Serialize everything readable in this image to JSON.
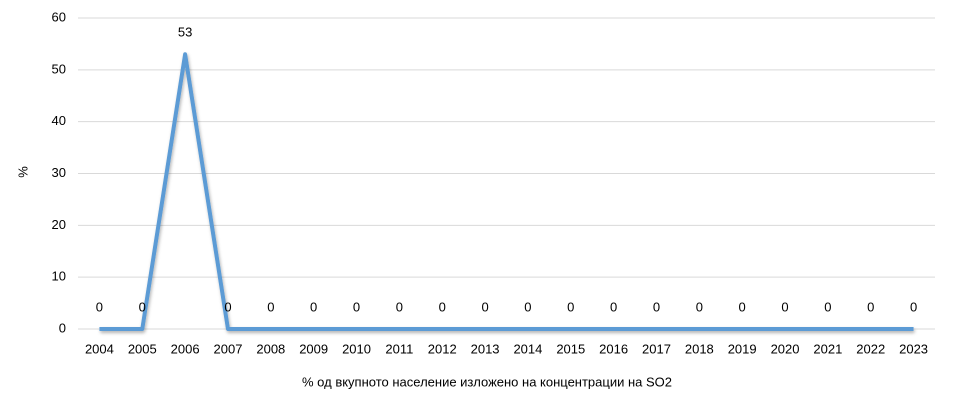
{
  "chart_data": {
    "type": "line",
    "y_label": "%",
    "categories": [
      "2004",
      "2005",
      "2006",
      "2007",
      "2008",
      "2009",
      "2010",
      "2011",
      "2012",
      "2013",
      "2014",
      "2015",
      "2016",
      "2017",
      "2018",
      "2019",
      "2020",
      "2021",
      "2022",
      "2023"
    ],
    "series": [
      {
        "name": "% од вкупното население изложено на концентрации на SO2",
        "color": "#5b9bd5",
        "values": [
          0,
          0,
          53,
          0,
          0,
          0,
          0,
          0,
          0,
          0,
          0,
          0,
          0,
          0,
          0,
          0,
          0,
          0,
          0,
          0
        ]
      }
    ],
    "ylim": [
      0,
      60
    ],
    "yticks": [
      0,
      10,
      20,
      30,
      40,
      50,
      60
    ],
    "grid": true,
    "legend": "bottom"
  }
}
